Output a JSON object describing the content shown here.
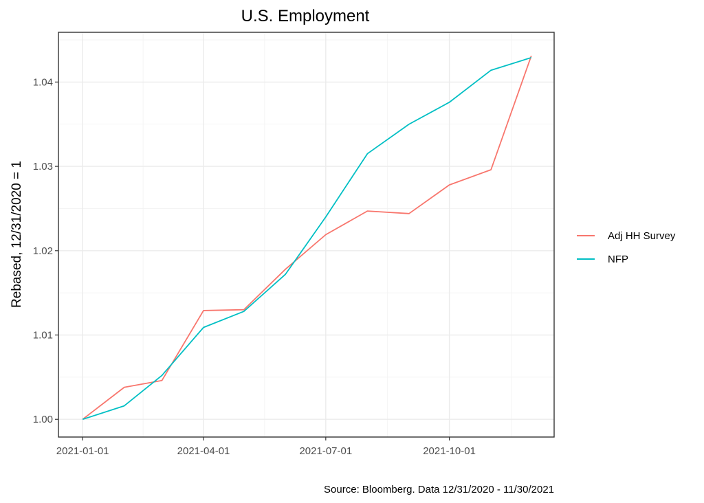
{
  "chart_data": {
    "type": "line",
    "title": "U.S. Employment",
    "xlabel": "",
    "ylabel": "Rebased, 12/31/2020 = 1",
    "caption": "Source: Bloomberg. Data 12/31/2020 - 11/30/2021",
    "x": [
      "2021-01-01",
      "2021-02-01",
      "2021-03-01",
      "2021-04-01",
      "2021-05-01",
      "2021-06-01",
      "2021-07-01",
      "2021-08-01",
      "2021-09-01",
      "2021-10-01",
      "2021-11-01",
      "2021-12-01"
    ],
    "x_ticks": [
      "2021-01-01",
      "2021-04-01",
      "2021-07-01",
      "2021-10-01"
    ],
    "xlim": [
      "2020-12-14",
      "2021-12-18"
    ],
    "ylim": [
      0.9979,
      1.0459
    ],
    "y_ticks": [
      1.0,
      1.01,
      1.02,
      1.03,
      1.04
    ],
    "y_tick_labels": [
      "1.00",
      "1.01",
      "1.02",
      "1.03",
      "1.04"
    ],
    "grid": true,
    "legend_position": "right",
    "series": [
      {
        "name": "Adj HH Survey",
        "color": "#f8766d",
        "values": [
          1.0,
          1.0038,
          1.0046,
          1.0129,
          1.013,
          1.0178,
          1.0219,
          1.0247,
          1.0244,
          1.0278,
          1.0296,
          1.0431
        ]
      },
      {
        "name": "NFP",
        "color": "#00bfc4",
        "values": [
          1.0,
          1.0016,
          1.0052,
          1.0109,
          1.0128,
          1.0172,
          1.024,
          1.0315,
          1.035,
          1.0376,
          1.0414,
          1.0429
        ]
      }
    ]
  }
}
